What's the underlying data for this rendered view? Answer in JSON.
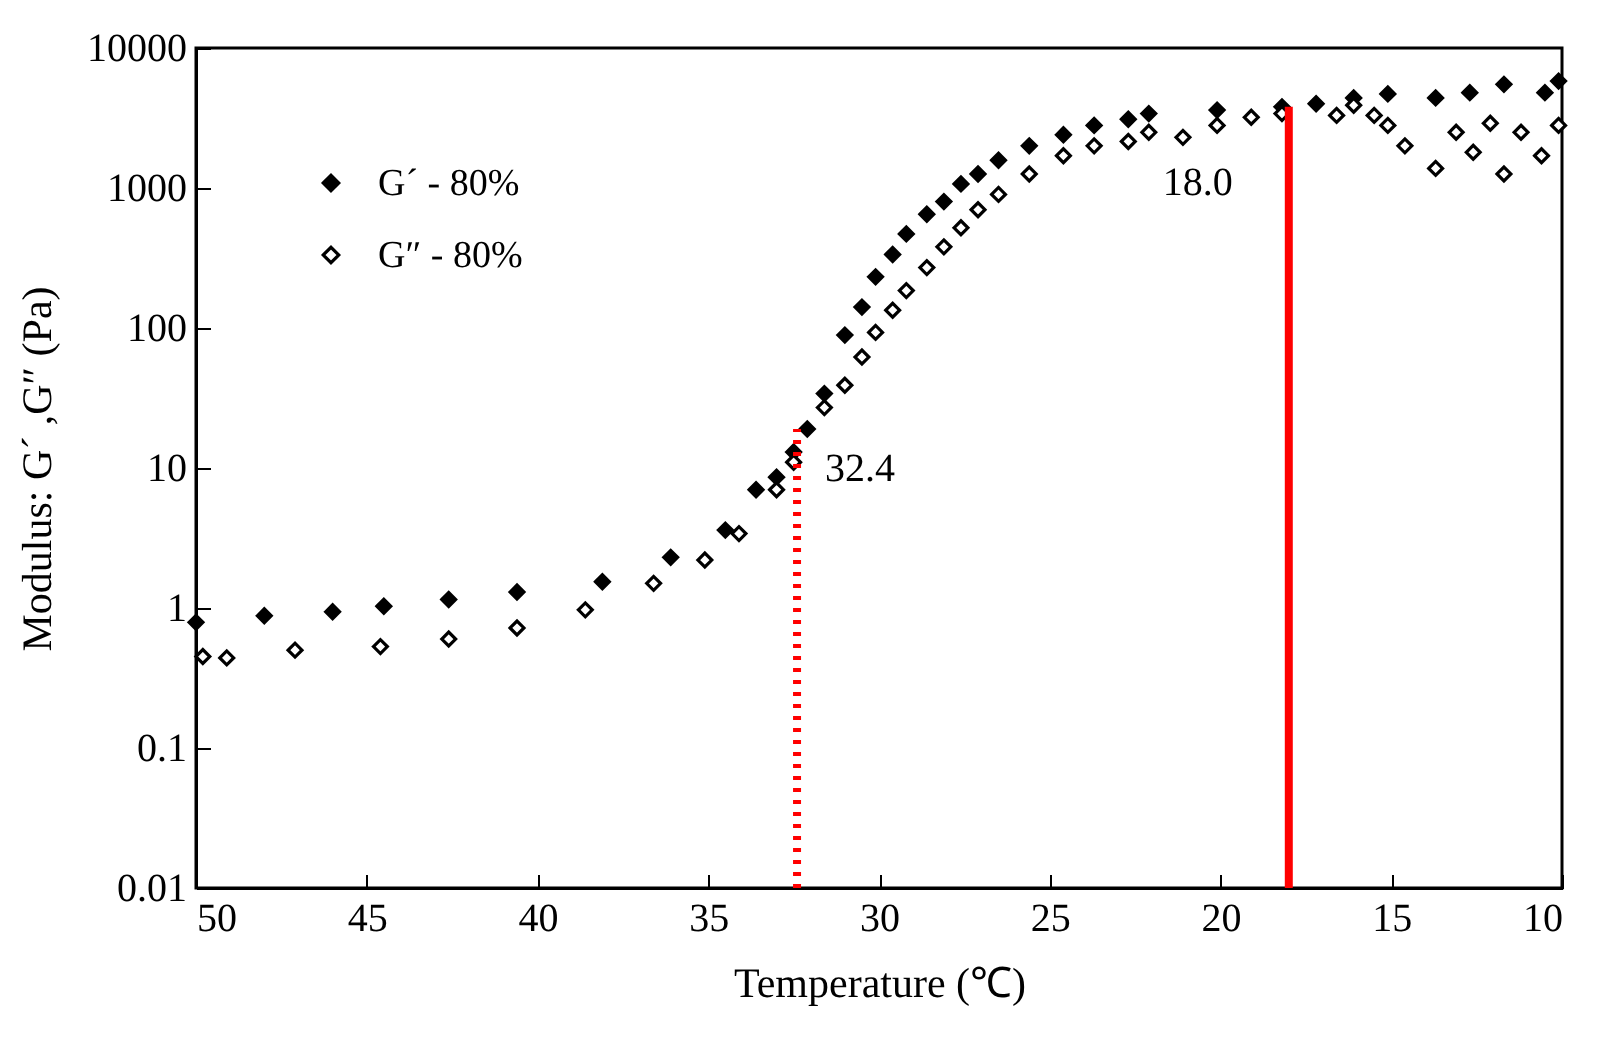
{
  "chart_data": {
    "type": "scatter",
    "xlabel": "Temperature (℃)",
    "ylabel": "Modulus: G´ ,G″   (Pa)",
    "xlim": [
      50,
      10
    ],
    "xticks": [
      50,
      45,
      40,
      35,
      30,
      25,
      20,
      15,
      10
    ],
    "ylim": [
      0.01,
      10000
    ],
    "yticks": [
      0.01,
      0.1,
      1,
      10,
      100,
      1000,
      10000
    ],
    "log": "y",
    "grid": false,
    "legend": "top left",
    "marker": "diamond",
    "series": [
      {
        "name": "G´ - 80%",
        "color": "#000000",
        "x": [
          50,
          48,
          46,
          44.5,
          42.6,
          40.6,
          38.1,
          36.1,
          34.5,
          33.6,
          33.0,
          32.5,
          32.1,
          31.6,
          31.0,
          30.5,
          30.1,
          29.6,
          29.2,
          28.6,
          28.1,
          27.6,
          27.1,
          26.5,
          25.6,
          24.6,
          23.7,
          22.7,
          22.1,
          20.1,
          18.2,
          17.2,
          16.1,
          15.1,
          13.7,
          12.7,
          11.7,
          10.5,
          10.1
        ],
        "values": [
          0.79,
          0.88,
          0.94,
          1.03,
          1.15,
          1.3,
          1.54,
          2.3,
          3.6,
          7,
          8.6,
          13,
          19,
          34,
          89,
          141,
          232,
          335,
          470,
          650,
          800,
          1070,
          1260,
          1580,
          2000,
          2400,
          2800,
          3100,
          3400,
          3600,
          3800,
          4000,
          4400,
          4700,
          4400,
          4800,
          5500,
          4800,
          5800
        ]
      },
      {
        "name": "G″ - 80%",
        "color": "#000000",
        "x": [
          49.8,
          49.1,
          47.1,
          44.6,
          42.6,
          40.6,
          38.6,
          36.6,
          35.1,
          34.1,
          33.0,
          32.5,
          31.6,
          31.0,
          30.5,
          30.1,
          29.6,
          29.2,
          28.6,
          28.1,
          27.6,
          27.1,
          26.5,
          25.6,
          24.6,
          23.7,
          22.7,
          22.1,
          21.1,
          20.1,
          19.1,
          18.2,
          16.6,
          16.1,
          15.5,
          15.1,
          14.6,
          13.7,
          13.1,
          12.6,
          12.1,
          11.7,
          11.2,
          10.6,
          10.1
        ],
        "values": [
          0.45,
          0.44,
          0.5,
          0.53,
          0.6,
          0.72,
          0.97,
          1.5,
          2.2,
          3.4,
          7,
          11,
          27,
          39,
          62,
          93,
          134,
          185,
          270,
          380,
          520,
          700,
          900,
          1260,
          1700,
          2000,
          2150,
          2500,
          2300,
          2800,
          3200,
          3400,
          3300,
          3900,
          3300,
          2800,
          2000,
          1380,
          2500,
          1800,
          2900,
          1260,
          2500,
          1700,
          2800
        ]
      },
      {
        "type": "line",
        "color": "#ff0000",
        "line_style": "dotted",
        "marker": "none",
        "x": [
          32.4,
          32.4
        ],
        "values": [
          0.01,
          19
        ]
      },
      {
        "type": "line",
        "color": "#ff0000",
        "line_style": "solid",
        "marker": "none",
        "x": [
          18.0,
          18.0
        ],
        "values": [
          0.01,
          3800
        ]
      }
    ],
    "annotations": [
      "32.4",
      "18.0"
    ]
  }
}
